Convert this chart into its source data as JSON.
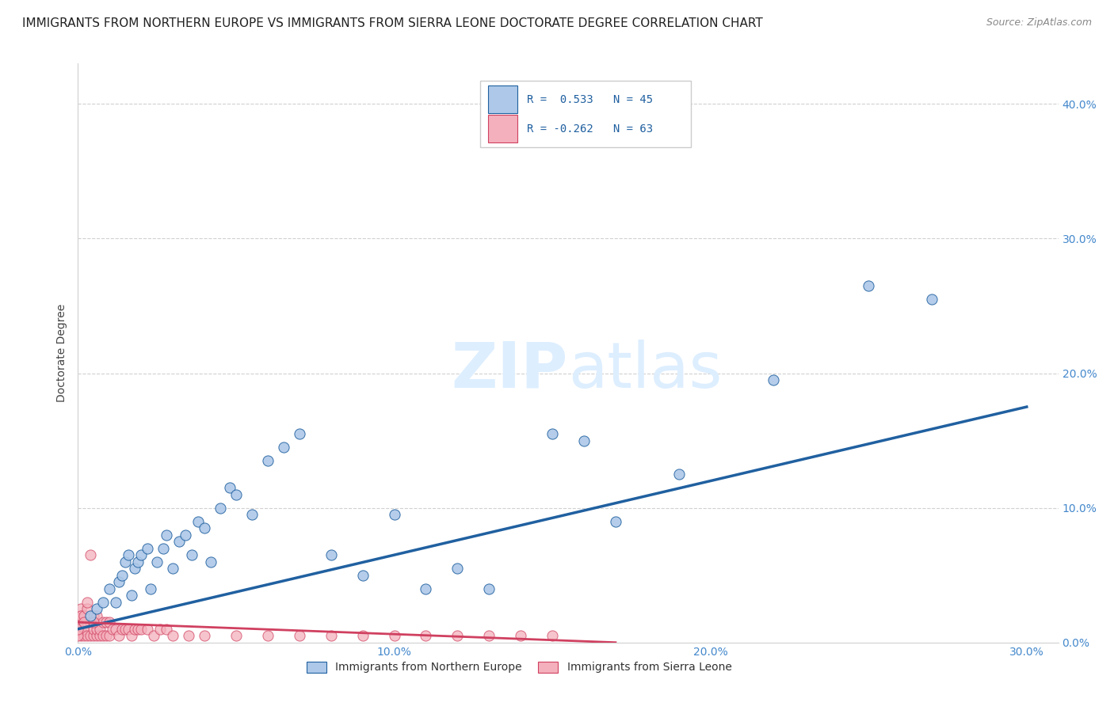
{
  "title": "IMMIGRANTS FROM NORTHERN EUROPE VS IMMIGRANTS FROM SIERRA LEONE DOCTORATE DEGREE CORRELATION CHART",
  "source": "Source: ZipAtlas.com",
  "ylabel_label": "Doctorate Degree",
  "xlim": [
    0.0,
    0.31
  ],
  "ylim": [
    0.0,
    0.43
  ],
  "legend_blue_r": "R =  0.533",
  "legend_blue_n": "N = 45",
  "legend_pink_r": "R = -0.262",
  "legend_pink_n": "N = 63",
  "blue_scatter_x": [
    0.004,
    0.006,
    0.008,
    0.01,
    0.012,
    0.013,
    0.014,
    0.015,
    0.016,
    0.017,
    0.018,
    0.019,
    0.02,
    0.022,
    0.023,
    0.025,
    0.027,
    0.028,
    0.03,
    0.032,
    0.034,
    0.036,
    0.038,
    0.04,
    0.042,
    0.045,
    0.048,
    0.05,
    0.055,
    0.06,
    0.065,
    0.07,
    0.08,
    0.09,
    0.1,
    0.11,
    0.12,
    0.13,
    0.15,
    0.16,
    0.17,
    0.19,
    0.22,
    0.25,
    0.27
  ],
  "blue_scatter_y": [
    0.02,
    0.025,
    0.03,
    0.04,
    0.03,
    0.045,
    0.05,
    0.06,
    0.065,
    0.035,
    0.055,
    0.06,
    0.065,
    0.07,
    0.04,
    0.06,
    0.07,
    0.08,
    0.055,
    0.075,
    0.08,
    0.065,
    0.09,
    0.085,
    0.06,
    0.1,
    0.115,
    0.11,
    0.095,
    0.135,
    0.145,
    0.155,
    0.065,
    0.05,
    0.095,
    0.04,
    0.055,
    0.04,
    0.155,
    0.15,
    0.09,
    0.125,
    0.195,
    0.265,
    0.255
  ],
  "pink_scatter_x": [
    0.001,
    0.001,
    0.001,
    0.001,
    0.002,
    0.002,
    0.002,
    0.003,
    0.003,
    0.004,
    0.004,
    0.005,
    0.005,
    0.005,
    0.006,
    0.006,
    0.006,
    0.007,
    0.007,
    0.008,
    0.008,
    0.009,
    0.009,
    0.01,
    0.01,
    0.011,
    0.012,
    0.013,
    0.014,
    0.015,
    0.016,
    0.017,
    0.018,
    0.019,
    0.02,
    0.022,
    0.024,
    0.026,
    0.028,
    0.03,
    0.035,
    0.04,
    0.05,
    0.06,
    0.07,
    0.08,
    0.09,
    0.1,
    0.11,
    0.12,
    0.13,
    0.14,
    0.15,
    0.0,
    0.0,
    0.001,
    0.001,
    0.002,
    0.002,
    0.003,
    0.003,
    0.004,
    0.005
  ],
  "pink_scatter_y": [
    0.005,
    0.01,
    0.015,
    0.02,
    0.005,
    0.01,
    0.015,
    0.005,
    0.015,
    0.005,
    0.015,
    0.005,
    0.01,
    0.02,
    0.005,
    0.01,
    0.02,
    0.005,
    0.01,
    0.005,
    0.015,
    0.005,
    0.015,
    0.005,
    0.015,
    0.01,
    0.01,
    0.005,
    0.01,
    0.01,
    0.01,
    0.005,
    0.01,
    0.01,
    0.01,
    0.01,
    0.005,
    0.01,
    0.01,
    0.005,
    0.005,
    0.005,
    0.005,
    0.005,
    0.005,
    0.005,
    0.005,
    0.005,
    0.005,
    0.005,
    0.005,
    0.005,
    0.005,
    0.005,
    0.01,
    0.025,
    0.02,
    0.02,
    0.015,
    0.025,
    0.03,
    0.065,
    0.015
  ],
  "blue_color": "#adc8e8",
  "pink_color": "#f4b0bc",
  "blue_line_color": "#2060a0",
  "pink_line_color": "#d04060",
  "grid_color": "#d0d0d0",
  "watermark_color": "#ddeeff",
  "title_fontsize": 11,
  "tick_fontsize": 10,
  "tick_color": "#4488cc",
  "legend_label_blue": "Immigrants from Northern Europe",
  "legend_label_pink": "Immigrants from Sierra Leone"
}
